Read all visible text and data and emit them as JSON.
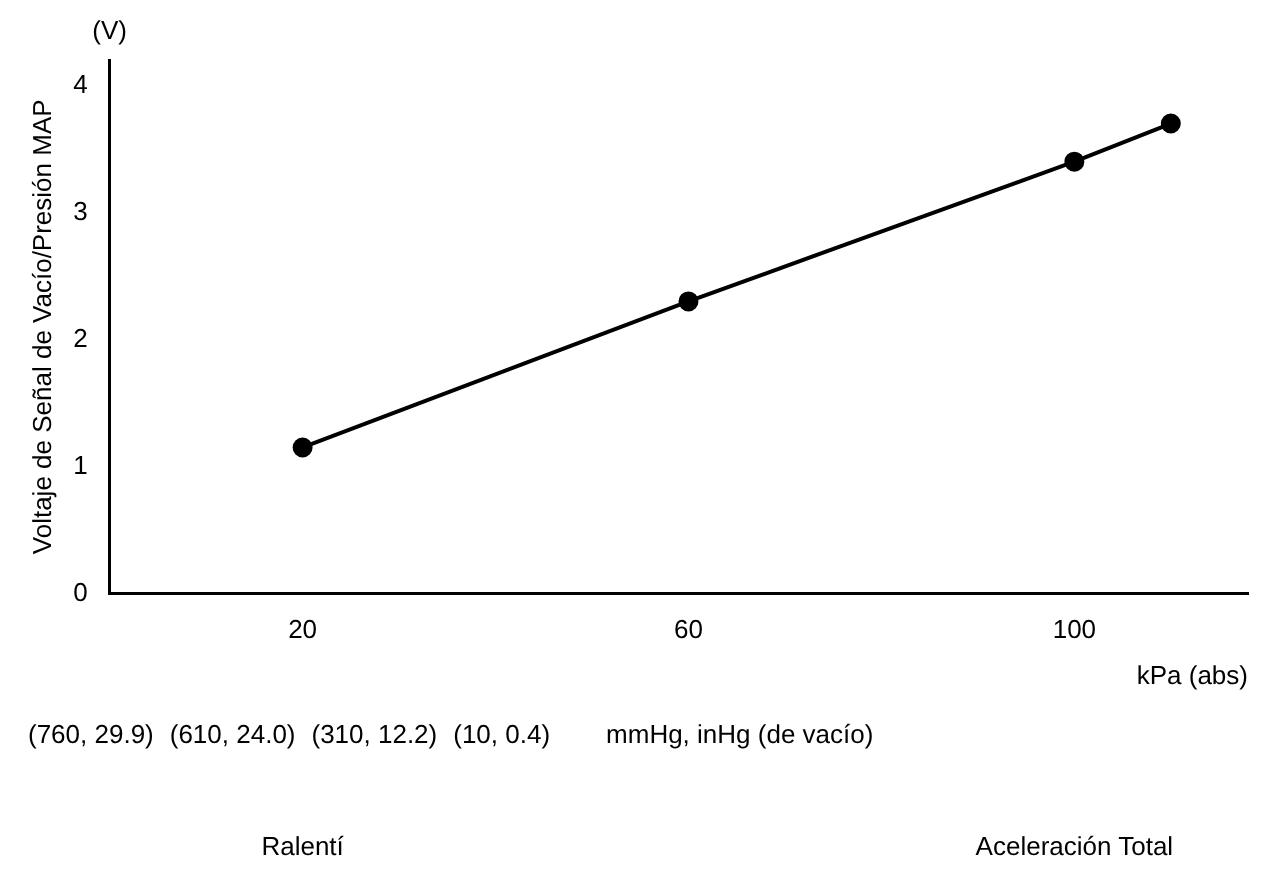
{
  "chart_data": {
    "type": "line",
    "ylabel": "Voltaje de Señal de Vacío/Presión MAP",
    "xlabel": "kPa (abs)",
    "x2label": "mmHg, inHg (de vacío)",
    "x": [
      20,
      60,
      100,
      110
    ],
    "series": [
      {
        "color": "#000000",
        "values": [
          1.15,
          2.3,
          3.4,
          3.7
        ]
      }
    ],
    "xlim": [
      0,
      118
    ],
    "xticks": [
      20,
      60,
      100
    ],
    "ylim": [
      0,
      4.2
    ],
    "yticks": [
      0,
      1,
      2,
      3,
      4
    ],
    "annotations": [
      "(V)",
      "(760, 29.9)",
      "(610, 24.0)",
      "(310, 12.2)",
      "(10, 0.4)",
      "Ralentí",
      "Aceleración Total"
    ],
    "grid": false,
    "legend": false,
    "marker": "circle",
    "line_style": "solid"
  }
}
